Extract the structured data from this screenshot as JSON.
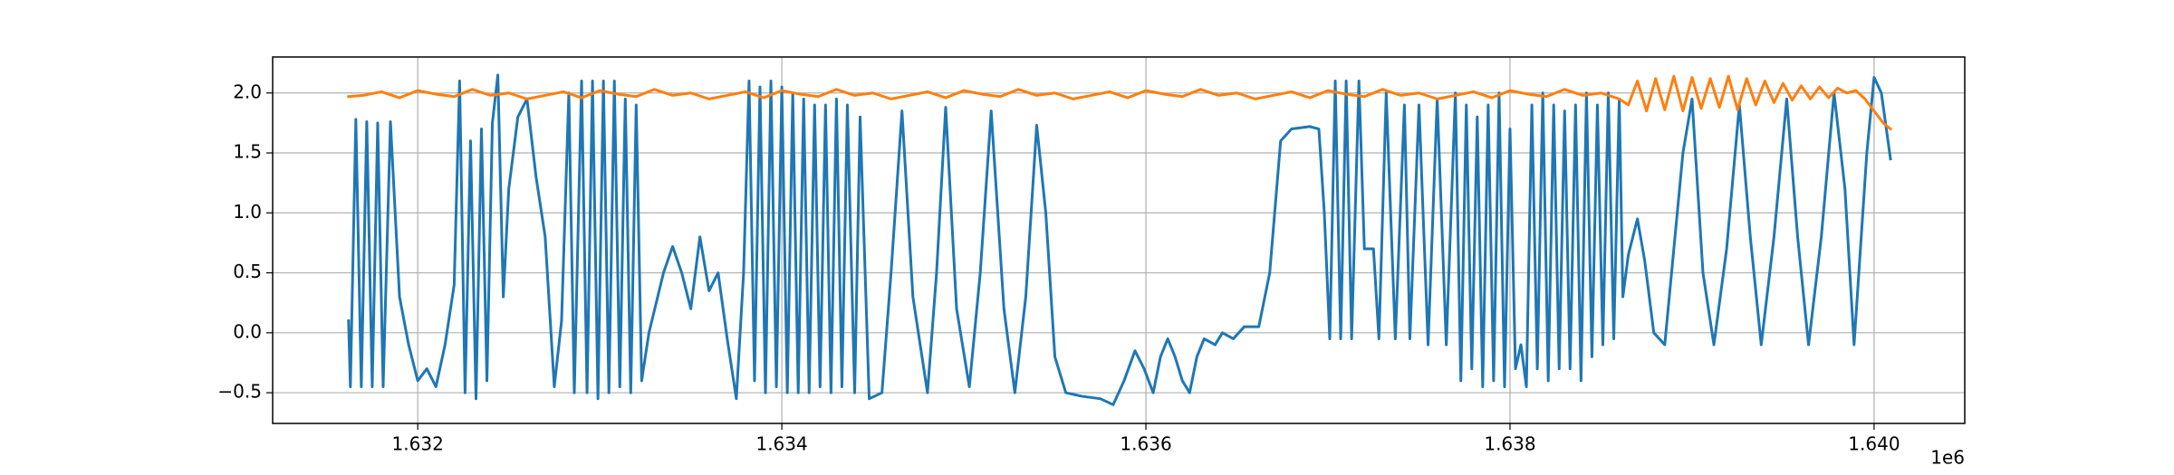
{
  "chart_data": {
    "type": "line",
    "x_offset_label": "1e6",
    "xlim": [
      1631203,
      1640498
    ],
    "ylim": [
      -0.756,
      2.3
    ],
    "xticks": [
      {
        "value": 1632000,
        "label": "1.632"
      },
      {
        "value": 1634000,
        "label": "1.634"
      },
      {
        "value": 1636000,
        "label": "1.636"
      },
      {
        "value": 1638000,
        "label": "1.638"
      },
      {
        "value": 1640000,
        "label": "1.640"
      }
    ],
    "yticks": [
      {
        "value": -0.5,
        "label": "−0.5"
      },
      {
        "value": 0,
        "label": "0.0"
      },
      0.5,
      {
        "value": 1,
        "label": "1.0"
      },
      1.5,
      {
        "value": 2,
        "label": "2.0"
      }
    ],
    "grid": true,
    "series": [
      {
        "color": "#1f77b4",
        "x": [
          1631620,
          1631630,
          1631660,
          1631690,
          1631720,
          1631750,
          1631780,
          1631810,
          1631850,
          1631900,
          1631950,
          1632000,
          1632050,
          1632100,
          1632150,
          1632200,
          1632230,
          1632260,
          1632290,
          1632320,
          1632350,
          1632380,
          1632410,
          1632440,
          1632470,
          1632500,
          1632550,
          1632600,
          1632650,
          1632700,
          1632750,
          1632790,
          1632830,
          1632860,
          1632900,
          1632930,
          1632960,
          1632990,
          1633020,
          1633050,
          1633080,
          1633110,
          1633140,
          1633170,
          1633200,
          1633230,
          1633270,
          1633350,
          1633400,
          1633450,
          1633500,
          1633550,
          1633600,
          1633650,
          1633700,
          1633750,
          1633790,
          1633820,
          1633850,
          1633880,
          1633910,
          1633940,
          1633970,
          1634000,
          1634030,
          1634060,
          1634090,
          1634120,
          1634150,
          1634180,
          1634210,
          1634240,
          1634270,
          1634300,
          1634330,
          1634360,
          1634400,
          1634430,
          1634480,
          1634550,
          1634600,
          1634660,
          1634720,
          1634800,
          1634850,
          1634900,
          1634960,
          1635030,
          1635090,
          1635150,
          1635220,
          1635280,
          1635340,
          1635400,
          1635450,
          1635500,
          1635560,
          1635650,
          1635750,
          1635820,
          1635880,
          1635940,
          1635990,
          1636040,
          1636080,
          1636120,
          1636160,
          1636200,
          1636240,
          1636280,
          1636320,
          1636380,
          1636420,
          1636480,
          1636540,
          1636620,
          1636680,
          1636740,
          1636800,
          1636900,
          1636950,
          1636980,
          1637010,
          1637040,
          1637070,
          1637100,
          1637130,
          1637170,
          1637200,
          1637250,
          1637280,
          1637320,
          1637370,
          1637420,
          1637450,
          1637500,
          1637550,
          1637600,
          1637650,
          1637700,
          1637730,
          1637760,
          1637790,
          1637820,
          1637850,
          1637880,
          1637910,
          1637940,
          1637970,
          1638000,
          1638030,
          1638060,
          1638090,
          1638120,
          1638150,
          1638180,
          1638210,
          1638240,
          1638270,
          1638300,
          1638330,
          1638360,
          1638390,
          1638420,
          1638450,
          1638480,
          1638510,
          1638540,
          1638570,
          1638600,
          1638620,
          1638650,
          1638700,
          1638740,
          1638790,
          1638850,
          1638950,
          1639000,
          1639060,
          1639120,
          1639190,
          1639260,
          1639320,
          1639380,
          1639450,
          1639520,
          1639580,
          1639640,
          1639710,
          1639780,
          1639840,
          1639890,
          1639960,
          1640000,
          1640040,
          1640090
        ],
        "values": [
          0.1,
          -0.45,
          1.78,
          -0.45,
          1.76,
          -0.45,
          1.75,
          -0.45,
          1.76,
          0.3,
          -0.1,
          -0.4,
          -0.3,
          -0.45,
          -0.1,
          0.4,
          2.1,
          -0.5,
          1.6,
          -0.55,
          1.7,
          -0.4,
          1.75,
          2.15,
          0.3,
          1.2,
          1.8,
          1.95,
          1.3,
          0.8,
          -0.45,
          0.1,
          2.0,
          -0.5,
          2.1,
          -0.5,
          2.1,
          -0.55,
          2.1,
          -0.5,
          2.1,
          -0.45,
          1.95,
          -0.5,
          1.9,
          -0.4,
          0.0,
          0.5,
          0.72,
          0.5,
          0.2,
          0.8,
          0.35,
          0.5,
          -0.05,
          -0.55,
          0.5,
          2.1,
          -0.4,
          2.05,
          -0.5,
          2.1,
          -0.45,
          2.05,
          -0.5,
          2.0,
          -0.5,
          1.95,
          -0.5,
          1.9,
          -0.45,
          1.9,
          -0.5,
          1.95,
          -0.45,
          1.9,
          -0.5,
          1.8,
          -0.55,
          -0.5,
          0.5,
          1.85,
          0.3,
          -0.5,
          0.5,
          1.88,
          0.2,
          -0.45,
          0.5,
          1.85,
          0.2,
          -0.5,
          0.3,
          1.73,
          1.0,
          -0.2,
          -0.5,
          -0.53,
          -0.55,
          -0.6,
          -0.4,
          -0.15,
          -0.3,
          -0.5,
          -0.2,
          -0.05,
          -0.2,
          -0.4,
          -0.5,
          -0.2,
          -0.05,
          -0.1,
          0.0,
          -0.05,
          0.05,
          0.05,
          0.5,
          1.6,
          1.7,
          1.72,
          1.7,
          1.0,
          -0.05,
          2.1,
          -0.05,
          2.1,
          -0.05,
          2.1,
          0.7,
          0.7,
          -0.05,
          2.0,
          -0.05,
          1.9,
          -0.05,
          1.9,
          -0.1,
          1.95,
          -0.1,
          2.0,
          -0.4,
          1.9,
          -0.3,
          1.8,
          -0.45,
          1.9,
          -0.4,
          2.0,
          -0.45,
          1.7,
          -0.3,
          -0.1,
          -0.45,
          1.9,
          -0.3,
          2.0,
          -0.4,
          1.9,
          -0.3,
          1.85,
          -0.3,
          1.9,
          -0.4,
          2.0,
          -0.2,
          1.9,
          -0.1,
          2.0,
          -0.05,
          1.95,
          0.3,
          0.65,
          0.95,
          0.6,
          0.0,
          -0.1,
          1.5,
          1.95,
          0.5,
          -0.1,
          0.7,
          1.9,
          0.8,
          -0.1,
          0.8,
          1.95,
          0.8,
          -0.1,
          0.8,
          2.0,
          1.2,
          -0.1,
          1.5,
          2.13,
          2.0,
          1.45
        ]
      },
      {
        "color": "#ff7f0e",
        "x": [
          1631620,
          1631700,
          1631800,
          1631900,
          1632000,
          1632100,
          1632200,
          1632300,
          1632400,
          1632500,
          1632600,
          1632700,
          1632800,
          1632900,
          1633000,
          1633100,
          1633200,
          1633300,
          1633400,
          1633500,
          1633600,
          1633700,
          1633800,
          1633900,
          1634000,
          1634100,
          1634200,
          1634300,
          1634400,
          1634500,
          1634600,
          1634700,
          1634800,
          1634900,
          1635000,
          1635100,
          1635200,
          1635300,
          1635400,
          1635500,
          1635600,
          1635700,
          1635800,
          1635900,
          1636000,
          1636100,
          1636200,
          1636300,
          1636400,
          1636500,
          1636600,
          1636700,
          1636800,
          1636900,
          1637000,
          1637100,
          1637200,
          1637300,
          1637400,
          1637500,
          1637600,
          1637700,
          1637800,
          1637900,
          1638000,
          1638100,
          1638200,
          1638300,
          1638400,
          1638500,
          1638600,
          1638650,
          1638700,
          1638750,
          1638800,
          1638850,
          1638900,
          1638950,
          1639000,
          1639050,
          1639100,
          1639150,
          1639200,
          1639250,
          1639300,
          1639350,
          1639400,
          1639450,
          1639500,
          1639550,
          1639600,
          1639650,
          1639700,
          1639750,
          1639800,
          1639850,
          1639900,
          1639950,
          1640000,
          1640050,
          1640090
        ],
        "values": [
          1.97,
          1.98,
          2.01,
          1.96,
          2.02,
          1.99,
          1.97,
          2.03,
          1.98,
          2.0,
          1.95,
          1.98,
          2.01,
          1.96,
          2.02,
          1.99,
          1.97,
          2.03,
          1.98,
          2.0,
          1.95,
          1.98,
          2.01,
          1.96,
          2.02,
          1.99,
          1.97,
          2.03,
          1.98,
          2.0,
          1.95,
          1.98,
          2.01,
          1.96,
          2.02,
          1.99,
          1.97,
          2.03,
          1.98,
          2.0,
          1.95,
          1.98,
          2.01,
          1.96,
          2.02,
          1.99,
          1.97,
          2.03,
          1.98,
          2.0,
          1.95,
          1.98,
          2.01,
          1.96,
          2.02,
          1.99,
          1.97,
          2.03,
          1.98,
          2.0,
          1.95,
          1.98,
          2.01,
          1.96,
          2.02,
          1.99,
          1.97,
          2.03,
          1.98,
          2.0,
          1.95,
          1.9,
          2.1,
          1.85,
          2.12,
          1.86,
          2.14,
          1.85,
          2.13,
          1.87,
          2.12,
          1.88,
          2.14,
          1.86,
          2.12,
          1.9,
          2.1,
          1.92,
          2.08,
          1.94,
          2.06,
          1.95,
          2.05,
          1.96,
          2.04,
          2.0,
          2.02,
          1.95,
          1.85,
          1.75,
          1.7
        ]
      }
    ]
  }
}
